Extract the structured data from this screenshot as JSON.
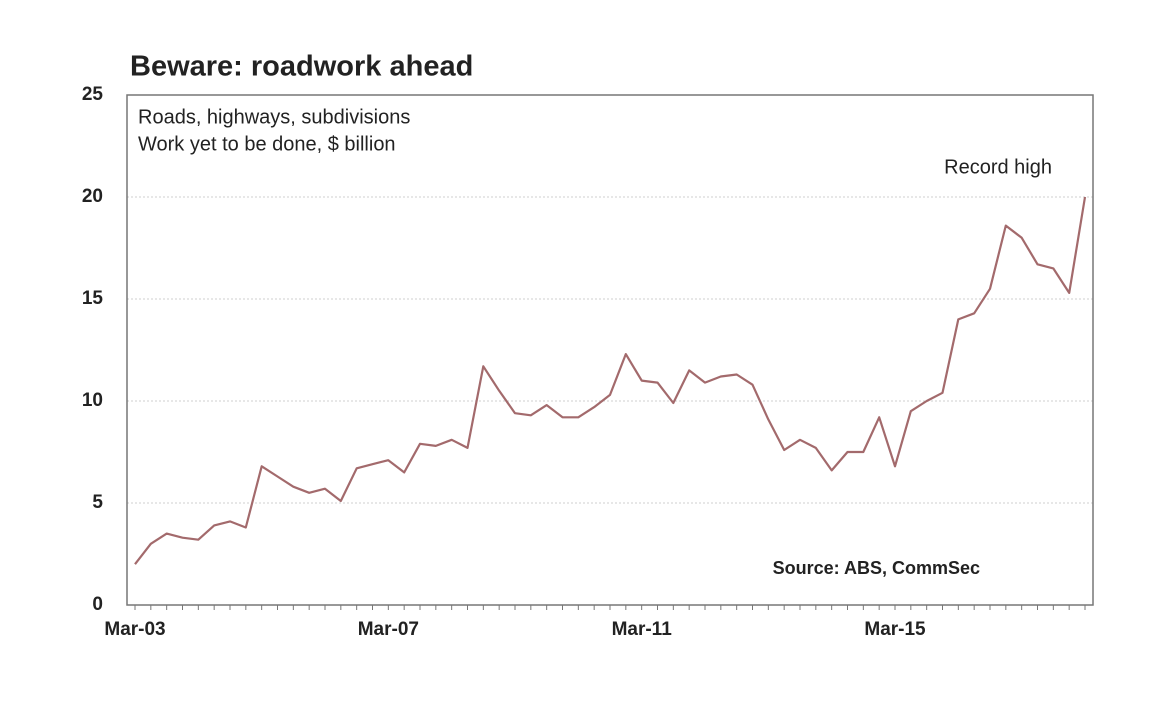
{
  "chart_data": {
    "type": "line",
    "title": "Beware: roadwork ahead",
    "subtitle": [
      "Roads, highways, subdivisions",
      "Work yet to be done, $ billion"
    ],
    "annotations": [
      "Record high",
      "Source: ABS, CommSec"
    ],
    "categories": [
      "Mar-03",
      null,
      null,
      null,
      null,
      null,
      null,
      null,
      null,
      null,
      null,
      null,
      null,
      null,
      null,
      null,
      "Mar-07",
      null,
      null,
      null,
      null,
      null,
      null,
      null,
      null,
      null,
      null,
      null,
      null,
      null,
      null,
      null,
      "Mar-11",
      null,
      null,
      null,
      null,
      null,
      null,
      null,
      null,
      null,
      null,
      null,
      null,
      null,
      null,
      null,
      "Mar-15",
      null,
      null,
      null,
      null,
      null,
      null,
      null,
      null,
      null,
      null,
      null,
      null
    ],
    "series": [
      {
        "color": "#a36a6c",
        "values": [
          2.0,
          3.0,
          3.5,
          3.3,
          3.2,
          3.9,
          4.1,
          3.8,
          6.8,
          6.3,
          5.8,
          5.5,
          5.7,
          5.1,
          6.7,
          6.9,
          7.1,
          6.5,
          7.9,
          7.8,
          8.1,
          7.7,
          11.7,
          10.5,
          9.4,
          9.3,
          9.8,
          9.2,
          9.2,
          9.7,
          10.3,
          12.3,
          11.0,
          10.9,
          9.9,
          11.5,
          10.9,
          11.2,
          11.3,
          10.8,
          9.1,
          7.6,
          8.1,
          7.7,
          6.6,
          7.5,
          7.5,
          9.2,
          6.8,
          9.5,
          10.0,
          10.4,
          14.0,
          14.3,
          15.5,
          18.6,
          18.0,
          16.7,
          16.5,
          15.3,
          20.0
        ]
      }
    ],
    "ylim": [
      0,
      25
    ],
    "yticks": [
      0,
      5,
      10,
      15,
      20,
      25
    ],
    "grid": true
  }
}
